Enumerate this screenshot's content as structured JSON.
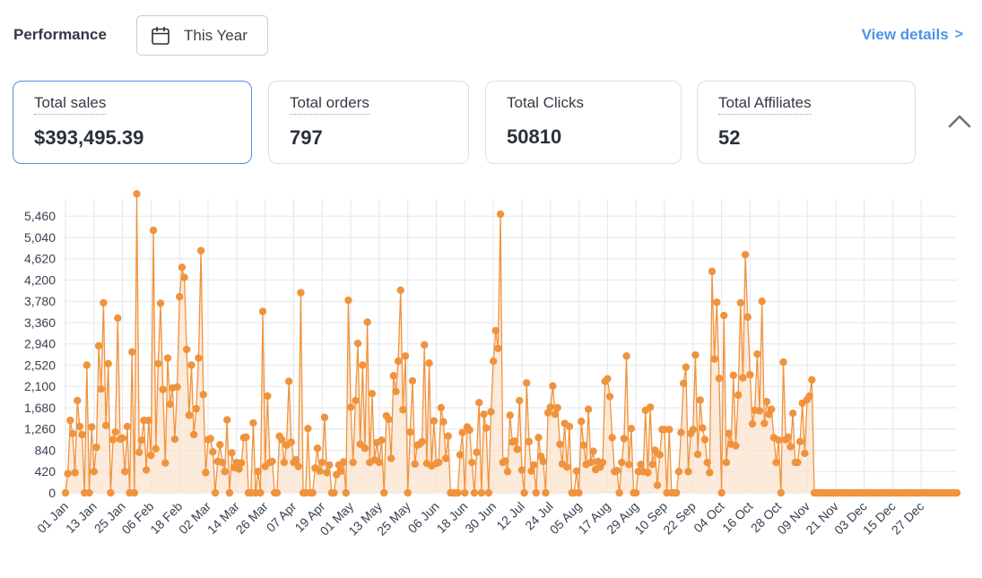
{
  "header": {
    "title": "Performance",
    "date_filter": "This Year",
    "view_details": "View details",
    "view_details_chevron": ">"
  },
  "cards": [
    {
      "title": "Total sales",
      "value": "$393,495.39",
      "active": true
    },
    {
      "title": "Total orders",
      "value": "797",
      "active": false
    },
    {
      "title": "Total Clicks",
      "value": "50810",
      "active": false
    },
    {
      "title": "Total Affiliates",
      "value": "52",
      "active": false
    }
  ],
  "icons": {
    "date": "calendar-icon",
    "collapse": "chevron-up-icon",
    "link": "chevron-right-icon"
  },
  "colors": {
    "series": "#f0933d",
    "fill": "#fbe3cd",
    "accent": "#4f94e6",
    "grid": "#e4e6ea"
  },
  "chart_data": {
    "type": "area",
    "title": "",
    "xlabel": "",
    "ylabel": "",
    "ylim": [
      0,
      5800
    ],
    "yticks": [
      0,
      420,
      840,
      1260,
      1680,
      2100,
      2520,
      2940,
      3360,
      3780,
      4200,
      4620,
      5040,
      5460
    ],
    "ytick_labels": [
      "0",
      "420",
      "840",
      "1,260",
      "1,680",
      "2,100",
      "2,520",
      "2,940",
      "3,360",
      "3,780",
      "4,200",
      "4,620",
      "5,040",
      "5,460"
    ],
    "xtick_labels": [
      "01 Jan",
      "13 Jan",
      "25 Jan",
      "06 Feb",
      "18 Feb",
      "02 Mar",
      "14 Mar",
      "26 Mar",
      "07 Apr",
      "19 Apr",
      "01 May",
      "13 May",
      "25 May",
      "06 Jun",
      "18 Jun",
      "30 Jun",
      "12 Jul",
      "24 Jul",
      "05 Aug",
      "17 Aug",
      "29 Aug",
      "10 Sep",
      "22 Sep",
      "04 Oct",
      "16 Oct",
      "28 Oct",
      "09 Nov",
      "21 Nov",
      "03 Dec",
      "15 Dec",
      "27 Dec"
    ],
    "xtick_every_days": 12,
    "grid": true,
    "legend": "none",
    "series": [
      {
        "daily": true,
        "start": "01 Jan",
        "values": [
          0,
          380,
          1430,
          1170,
          400,
          1820,
          1310,
          1150,
          0,
          2520,
          0,
          1300,
          420,
          900,
          2900,
          2050,
          3750,
          1330,
          2550,
          0,
          1050,
          1200,
          3450,
          1060,
          1080,
          420,
          1310,
          0,
          2780,
          0,
          5900,
          800,
          1040,
          1430,
          450,
          1430,
          740,
          5180,
          870,
          2550,
          3740,
          2040,
          590,
          2660,
          1750,
          2070,
          1060,
          2090,
          3870,
          4450,
          4250,
          2830,
          1530,
          2520,
          1150,
          1660,
          2660,
          4780,
          1940,
          400,
          1050,
          1070,
          810,
          0,
          620,
          950,
          600,
          420,
          1440,
          0,
          790,
          500,
          600,
          470,
          590,
          1090,
          1100,
          0,
          0,
          1380,
          0,
          420,
          0,
          3580,
          520,
          1910,
          600,
          620,
          0,
          0,
          1120,
          1050,
          600,
          940,
          2200,
          1000,
          600,
          650,
          520,
          3950,
          0,
          0,
          1270,
          0,
          0,
          490,
          880,
          430,
          600,
          1490,
          400,
          550,
          0,
          0,
          360,
          550,
          430,
          610,
          0,
          3800,
          1690,
          600,
          1820,
          2950,
          960,
          2520,
          880,
          3370,
          600,
          1960,
          650,
          990,
          600,
          1040,
          0,
          1520,
          1450,
          680,
          2310,
          2000,
          2600,
          4000,
          1640,
          2700,
          0,
          1200,
          2210,
          570,
          940,
          960,
          1010,
          2920,
          580,
          2560,
          530,
          1420,
          580,
          600,
          1680,
          1400,
          680,
          1120,
          0,
          0,
          0,
          0,
          750,
          1190,
          0,
          1300,
          1240,
          600,
          0,
          800,
          1780,
          0,
          1550,
          1280,
          0,
          1600,
          2600,
          3200,
          2850,
          5500,
          600,
          630,
          420,
          1530,
          1000,
          1020,
          860,
          1820,
          450,
          0,
          2170,
          1010,
          430,
          550,
          0,
          1090,
          720,
          620,
          0,
          1580,
          1690,
          2110,
          1550,
          1680,
          960,
          570,
          1370,
          510,
          1310,
          0,
          0,
          430,
          0,
          1410,
          940,
          560,
          1650,
          600,
          820,
          460,
          620,
          510,
          600,
          2200,
          2250,
          1900,
          1090,
          420,
          440,
          0,
          600,
          1070,
          2700,
          560,
          1270,
          0,
          0,
          420,
          560,
          420,
          1630,
          400,
          1690,
          560,
          840,
          150,
          750,
          1250,
          1250,
          0,
          1250,
          0,
          0,
          0,
          420,
          1190,
          2160,
          2480,
          420,
          1170,
          1250,
          2720,
          760,
          1830,
          1280,
          1050,
          600,
          400,
          4370,
          2640,
          3760,
          2260,
          0,
          3500,
          600,
          1170,
          960,
          2320,
          930,
          1930,
          3750,
          2270,
          4700,
          3470,
          2330,
          1360,
          1630,
          2740,
          1620,
          3780,
          1370,
          1800,
          1550,
          1650,
          1090,
          600,
          1040,
          0,
          2580,
          1050,
          1100,
          910,
          1570,
          600,
          600,
          1010,
          1770,
          780,
          1840,
          1910,
          2230,
          0,
          0,
          0,
          0,
          0,
          0,
          0,
          0,
          0,
          0,
          0,
          0,
          0,
          0,
          0,
          0,
          0,
          0,
          0,
          0,
          0,
          0,
          0,
          0,
          0,
          0,
          0,
          0,
          0,
          0,
          0,
          0,
          0,
          0,
          0,
          0,
          0,
          0,
          0,
          0,
          0,
          0,
          0,
          0,
          0,
          0,
          0,
          0,
          0,
          0,
          0,
          0,
          0,
          0,
          0,
          0,
          0,
          0,
          0,
          0,
          0
        ]
      }
    ]
  }
}
